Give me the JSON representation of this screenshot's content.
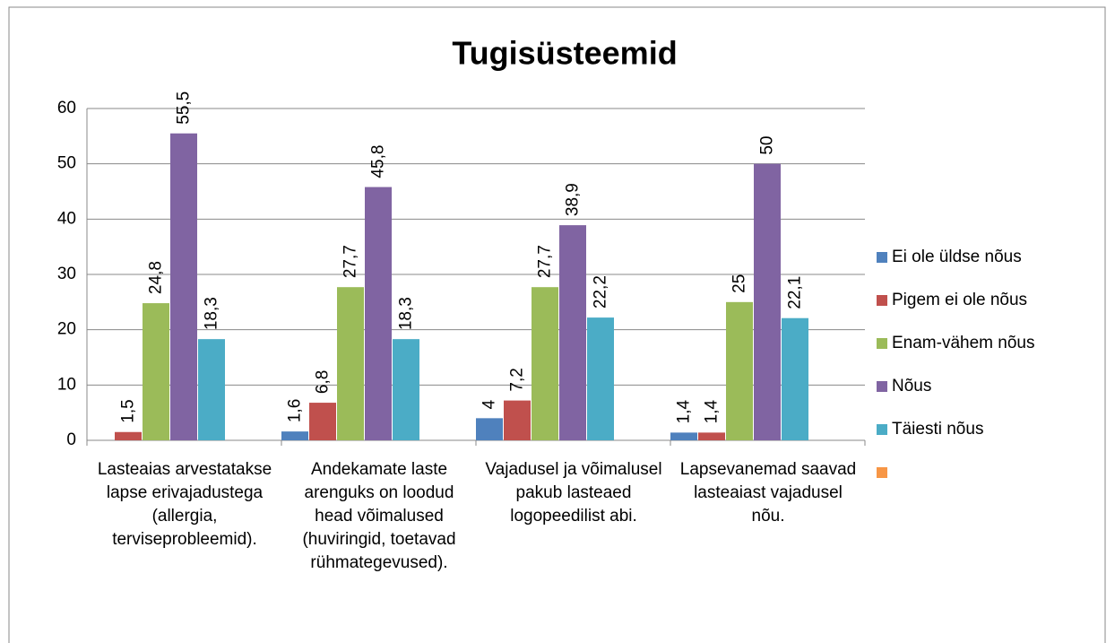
{
  "chart_data": {
    "type": "bar",
    "title": "Tugisüsteemid",
    "categories": [
      "Lasteaias arvestatakse lapse erivajadustega (allergia, terviseprobleemid).",
      "Andekamate laste arenguks on loodud head võimalused (huviringid, toetavad rühmategevused).",
      "Vajadusel ja võimalusel pakub lasteaed logopeedilist abi.",
      "Lapsevanemad saavad lasteaiast vajadusel nõu."
    ],
    "series": [
      {
        "name": "Ei ole üldse nõus",
        "color": "#4f81bd",
        "values": [
          null,
          1.6,
          4,
          1.4
        ],
        "value_labels": [
          null,
          "1,6",
          "4",
          "1,4"
        ]
      },
      {
        "name": "Pigem ei ole nõus",
        "color": "#c0504d",
        "values": [
          1.5,
          6.8,
          7.2,
          1.4
        ],
        "value_labels": [
          "1,5",
          "6,8",
          "7,2",
          "1,4"
        ]
      },
      {
        "name": "Enam-vähem nõus",
        "color": "#9bbb59",
        "values": [
          24.8,
          27.7,
          27.7,
          25
        ],
        "value_labels": [
          "24,8",
          "27,7",
          "27,7",
          "25"
        ]
      },
      {
        "name": "Nõus",
        "color": "#8064a2",
        "values": [
          55.5,
          45.8,
          38.9,
          50
        ],
        "value_labels": [
          "55,5",
          "45,8",
          "38,9",
          "50"
        ]
      },
      {
        "name": "Täiesti nõus",
        "color": "#4bacc6",
        "values": [
          18.3,
          18.3,
          22.2,
          22.1
        ],
        "value_labels": [
          "18,3",
          "18,3",
          "22,2",
          "22,1"
        ]
      },
      {
        "name": null,
        "color": "#f79646",
        "values": [
          null,
          null,
          null,
          null
        ]
      }
    ],
    "ylim": [
      0,
      60
    ],
    "yticks": [
      0,
      10,
      20,
      30,
      40,
      50,
      60
    ],
    "grid": true,
    "legend": "right"
  }
}
